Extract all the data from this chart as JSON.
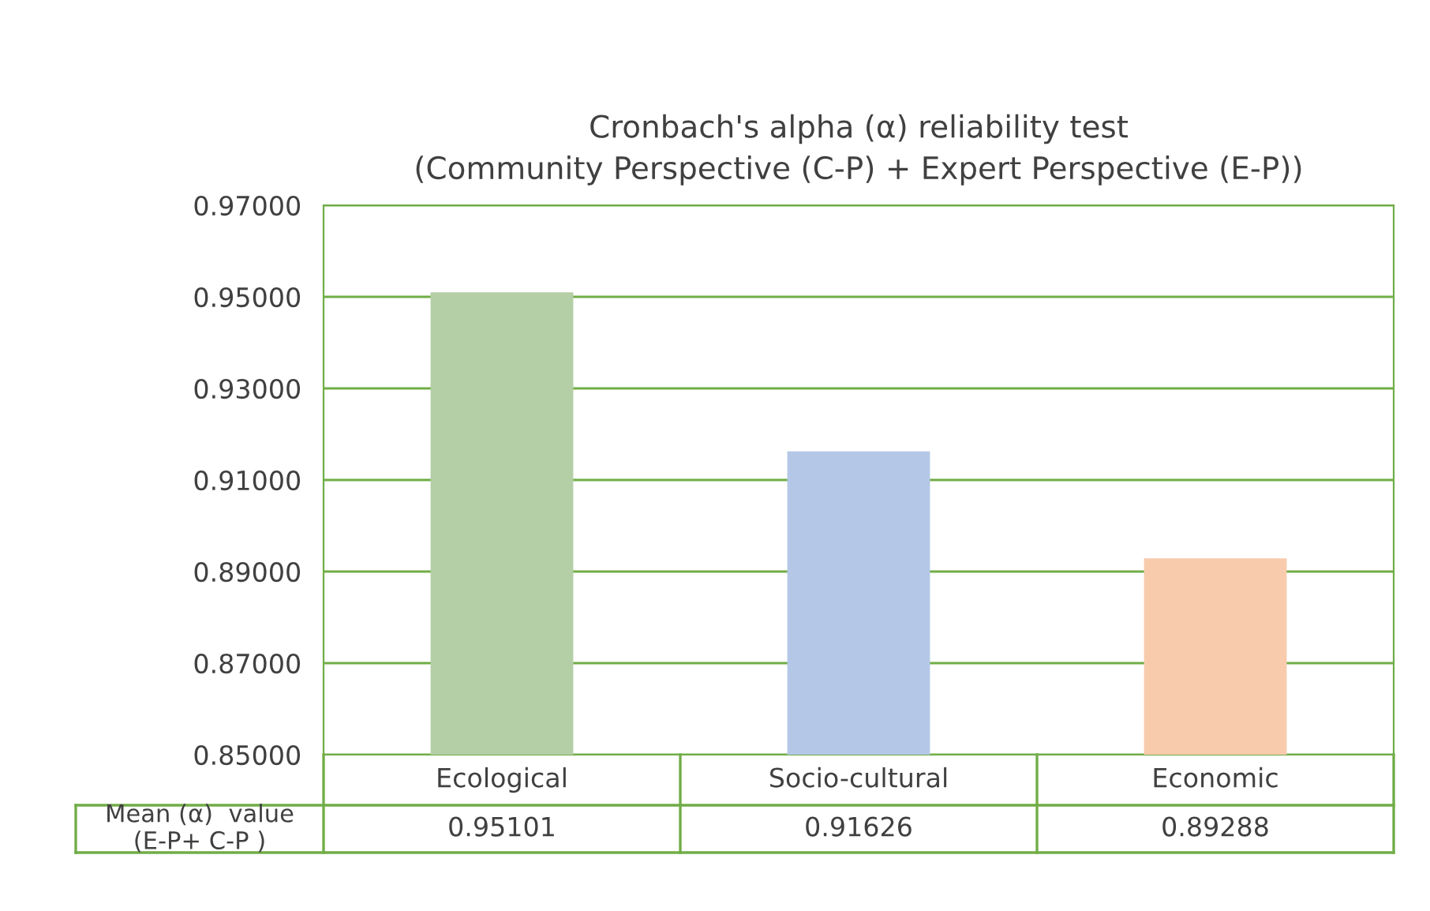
{
  "chart_data": {
    "type": "bar",
    "title": "Cronbach's alpha (α) reliability test\n(Community Perspective (C-P) + Expert Perspective (E-P))",
    "categories": [
      "Ecological",
      "Socio-cultural",
      "Economic"
    ],
    "series": [
      {
        "name": "Mean (α)  value\n(E-P+ C-P )",
        "values": [
          0.95101,
          0.91626,
          0.89288
        ]
      }
    ],
    "colors": [
      "#b4cfa6",
      "#b4c7e7",
      "#f8cbad"
    ],
    "ylim": [
      0.85,
      0.97
    ],
    "yticks": [
      {
        "value": 0.85,
        "label": "0.85000"
      },
      {
        "value": 0.87,
        "label": "0.87000"
      },
      {
        "value": 0.89,
        "label": "0.89000"
      },
      {
        "value": 0.91,
        "label": "0.91000"
      },
      {
        "value": 0.93,
        "label": "0.93000"
      },
      {
        "value": 0.95,
        "label": "0.95000"
      },
      {
        "value": 0.97,
        "label": "0.97000"
      }
    ],
    "grid": "y",
    "data_labels": true
  }
}
